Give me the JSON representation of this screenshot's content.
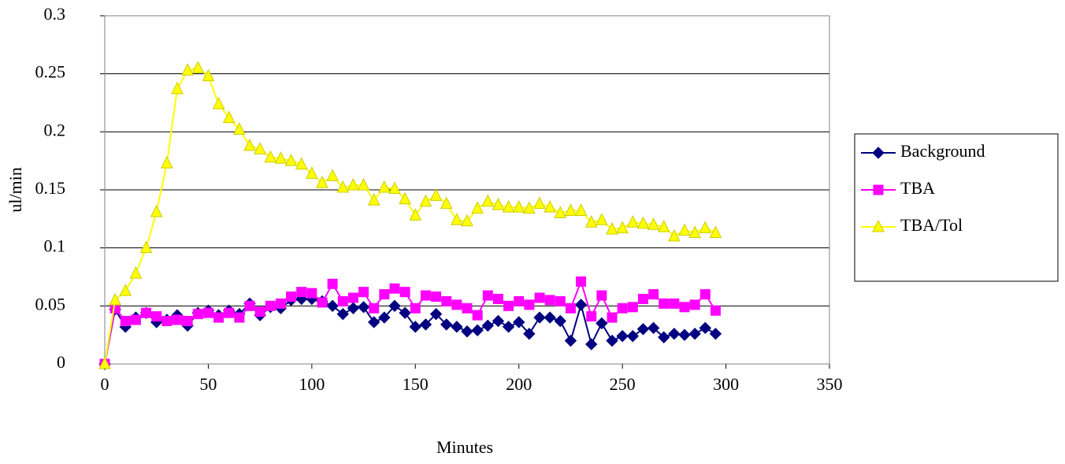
{
  "chart_data": {
    "type": "line",
    "x_label": "Minutes",
    "y_label": "ul/min",
    "x": [
      0,
      5,
      10,
      15,
      20,
      25,
      30,
      35,
      40,
      45,
      50,
      55,
      60,
      65,
      70,
      75,
      80,
      85,
      90,
      95,
      100,
      105,
      110,
      115,
      120,
      125,
      130,
      135,
      140,
      145,
      150,
      155,
      160,
      165,
      170,
      175,
      180,
      185,
      190,
      195,
      200,
      205,
      210,
      215,
      220,
      225,
      230,
      235,
      240,
      245,
      250,
      255,
      260,
      265,
      270,
      275,
      280,
      285,
      290,
      295
    ],
    "series": [
      {
        "name": "Background",
        "color": "#000080",
        "marker": "diamond",
        "values": [
          0,
          0.047,
          0.032,
          0.04,
          0.044,
          0.036,
          0.038,
          0.042,
          0.033,
          0.044,
          0.046,
          0.042,
          0.046,
          0.043,
          0.052,
          0.042,
          0.049,
          0.048,
          0.055,
          0.056,
          0.056,
          0.054,
          0.05,
          0.043,
          0.048,
          0.049,
          0.036,
          0.04,
          0.05,
          0.044,
          0.032,
          0.034,
          0.043,
          0.034,
          0.032,
          0.028,
          0.029,
          0.033,
          0.037,
          0.032,
          0.036,
          0.026,
          0.04,
          0.04,
          0.037,
          0.02,
          0.051,
          0.017,
          0.035,
          0.02,
          0.024,
          0.024,
          0.03,
          0.031,
          0.023,
          0.026,
          0.025,
          0.026,
          0.031,
          0.026
        ]
      },
      {
        "name": "TBA",
        "color": "#ff00ff",
        "marker": "square",
        "values": [
          0,
          0.048,
          0.037,
          0.038,
          0.044,
          0.041,
          0.037,
          0.038,
          0.037,
          0.043,
          0.044,
          0.04,
          0.044,
          0.04,
          0.05,
          0.045,
          0.05,
          0.052,
          0.058,
          0.062,
          0.061,
          0.053,
          0.069,
          0.054,
          0.057,
          0.062,
          0.048,
          0.06,
          0.065,
          0.062,
          0.048,
          0.059,
          0.058,
          0.054,
          0.051,
          0.048,
          0.042,
          0.059,
          0.056,
          0.05,
          0.054,
          0.051,
          0.057,
          0.055,
          0.054,
          0.048,
          0.071,
          0.041,
          0.059,
          0.04,
          0.048,
          0.049,
          0.056,
          0.06,
          0.052,
          0.052,
          0.049,
          0.051,
          0.06,
          0.046
        ]
      },
      {
        "name": "TBA/Tol",
        "color": "#ffff00",
        "marker": "triangle",
        "values": [
          0,
          0.055,
          0.063,
          0.078,
          0.1,
          0.131,
          0.173,
          0.237,
          0.253,
          0.255,
          0.248,
          0.224,
          0.212,
          0.202,
          0.188,
          0.185,
          0.178,
          0.177,
          0.175,
          0.172,
          0.164,
          0.156,
          0.162,
          0.152,
          0.154,
          0.154,
          0.141,
          0.152,
          0.151,
          0.142,
          0.128,
          0.14,
          0.145,
          0.138,
          0.124,
          0.123,
          0.134,
          0.14,
          0.137,
          0.135,
          0.135,
          0.134,
          0.138,
          0.135,
          0.13,
          0.132,
          0.132,
          0.122,
          0.124,
          0.116,
          0.117,
          0.122,
          0.121,
          0.12,
          0.118,
          0.11,
          0.115,
          0.113,
          0.117,
          0.113
        ]
      }
    ],
    "xlim": [
      0,
      350
    ],
    "xticks": [
      0,
      50,
      100,
      150,
      200,
      250,
      300,
      350
    ],
    "ylim": [
      0,
      0.3
    ],
    "yticks": [
      0,
      0.05,
      0.1,
      0.15,
      0.2,
      0.25,
      0.3
    ],
    "grid": true,
    "legend": "right"
  }
}
